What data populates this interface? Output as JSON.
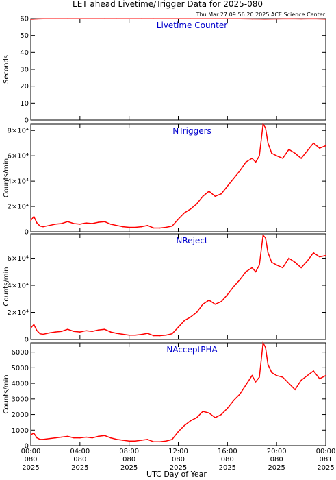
{
  "header": {
    "title": "LET ahead Livetime/Trigger Data for 2025-080",
    "timestamp": "Thu Mar 27 09:56:20 2025 ACE Science Center"
  },
  "x_axis": {
    "label": "UTC Day of Year",
    "ticks": [
      {
        "time": "00:00",
        "doy": "080",
        "year": "2025",
        "hours": 0
      },
      {
        "time": "04:00",
        "doy": "080",
        "year": "2025",
        "hours": 4
      },
      {
        "time": "08:00",
        "doy": "080",
        "year": "2025",
        "hours": 8
      },
      {
        "time": "12:00",
        "doy": "080",
        "year": "2025",
        "hours": 12
      },
      {
        "time": "16:00",
        "doy": "080",
        "year": "2025",
        "hours": 16
      },
      {
        "time": "20:00",
        "doy": "080",
        "year": "2025",
        "hours": 20
      },
      {
        "time": "00:00",
        "doy": "081",
        "year": "2025",
        "hours": 24
      }
    ],
    "range_hours": [
      0,
      24
    ]
  },
  "colors": {
    "data_line": "#ff0000",
    "panel_title": "#0000cc",
    "axes": "#000000",
    "background": "#ffffff"
  },
  "chart_data": [
    {
      "type": "line",
      "title": "Livetime Counter",
      "ylabel": "Seconds",
      "ylim": [
        0,
        60
      ],
      "yticks": [
        {
          "v": 0,
          "t": "0"
        },
        {
          "v": 10,
          "t": "10"
        },
        {
          "v": 20,
          "t": "20"
        },
        {
          "v": 30,
          "t": "30"
        },
        {
          "v": 40,
          "t": "40"
        },
        {
          "v": 50,
          "t": "50"
        },
        {
          "v": 60,
          "t": "60"
        }
      ],
      "x": [
        0,
        0.5,
        1,
        2,
        3,
        4,
        5,
        6,
        7,
        8,
        9,
        10,
        11,
        12,
        13,
        14,
        15,
        16,
        17,
        18,
        19,
        20,
        21,
        22,
        23,
        24
      ],
      "values": [
        59.6,
        59.8,
        59.9,
        59.9,
        59.9,
        59.9,
        59.9,
        59.9,
        59.9,
        59.9,
        59.9,
        59.9,
        59.9,
        59.9,
        59.9,
        59.9,
        59.9,
        59.9,
        59.9,
        59.8,
        59.7,
        59.8,
        59.9,
        59.8,
        59.9,
        59.7
      ]
    },
    {
      "type": "line",
      "title": "NTriggers",
      "ylabel": "Counts/min",
      "ylim": [
        0,
        85000
      ],
      "yticks": [
        {
          "v": 0,
          "t": "0"
        },
        {
          "v": 20000,
          "t": "2×10⁴"
        },
        {
          "v": 40000,
          "t": "4×10⁴"
        },
        {
          "v": 60000,
          "t": "6×10⁴"
        },
        {
          "v": 80000,
          "t": "8×10⁴"
        }
      ],
      "x": [
        0,
        0.25,
        0.5,
        0.75,
        1,
        1.5,
        2,
        2.5,
        3,
        3.5,
        4,
        4.5,
        5,
        5.5,
        6,
        6.5,
        7,
        7.5,
        8,
        8.5,
        9,
        9.5,
        10,
        10.5,
        11,
        11.5,
        12,
        12.5,
        13,
        13.5,
        14,
        14.5,
        15,
        15.5,
        16,
        16.5,
        17,
        17.5,
        18,
        18.3,
        18.6,
        18.9,
        19.1,
        19.3,
        19.6,
        20,
        20.5,
        21,
        21.5,
        22,
        22.5,
        23,
        23.5,
        24
      ],
      "values": [
        9000,
        12000,
        7000,
        4500,
        4000,
        5000,
        6000,
        6500,
        8000,
        6500,
        6000,
        7000,
        6500,
        7500,
        8000,
        6000,
        5000,
        4000,
        3500,
        3500,
        4000,
        5000,
        3000,
        3000,
        3500,
        4500,
        10000,
        15000,
        18000,
        22000,
        28000,
        32000,
        28000,
        30000,
        36000,
        42000,
        48000,
        55000,
        58000,
        55000,
        60000,
        85000,
        82000,
        70000,
        62000,
        60000,
        58000,
        65000,
        62000,
        58000,
        64000,
        70000,
        66000,
        68000
      ]
    },
    {
      "type": "line",
      "title": "NReject",
      "ylabel": "Counts/min",
      "ylim": [
        0,
        78000
      ],
      "yticks": [
        {
          "v": 0,
          "t": "0"
        },
        {
          "v": 20000,
          "t": "2×10⁴"
        },
        {
          "v": 40000,
          "t": "4×10⁴"
        },
        {
          "v": 60000,
          "t": "6×10⁴"
        }
      ],
      "x": [
        0,
        0.25,
        0.5,
        0.75,
        1,
        1.5,
        2,
        2.5,
        3,
        3.5,
        4,
        4.5,
        5,
        5.5,
        6,
        6.5,
        7,
        7.5,
        8,
        8.5,
        9,
        9.5,
        10,
        10.5,
        11,
        11.5,
        12,
        12.5,
        13,
        13.5,
        14,
        14.5,
        15,
        15.5,
        16,
        16.5,
        17,
        17.5,
        18,
        18.3,
        18.6,
        18.9,
        19.1,
        19.3,
        19.6,
        20,
        20.5,
        21,
        21.5,
        22,
        22.5,
        23,
        23.5,
        24
      ],
      "values": [
        8500,
        11000,
        6500,
        4200,
        3800,
        4800,
        5500,
        6000,
        7500,
        6000,
        5500,
        6500,
        6000,
        7000,
        7500,
        5500,
        4500,
        3800,
        3200,
        3200,
        3700,
        4500,
        2800,
        2800,
        3200,
        4200,
        9000,
        14000,
        16500,
        20000,
        26000,
        29000,
        26000,
        28000,
        33000,
        39000,
        44000,
        50000,
        53000,
        50000,
        55000,
        77000,
        75000,
        64000,
        57000,
        55000,
        53000,
        60000,
        57000,
        53000,
        58000,
        64000,
        61000,
        62000
      ]
    },
    {
      "type": "line",
      "title": "NAcceptPHA",
      "ylabel": "Counts/min",
      "ylim": [
        0,
        6600
      ],
      "yticks": [
        {
          "v": 0,
          "t": "0"
        },
        {
          "v": 1000,
          "t": "1000"
        },
        {
          "v": 2000,
          "t": "2000"
        },
        {
          "v": 3000,
          "t": "3000"
        },
        {
          "v": 4000,
          "t": "4000"
        },
        {
          "v": 5000,
          "t": "5000"
        },
        {
          "v": 6000,
          "t": "6000"
        }
      ],
      "x": [
        0,
        0.25,
        0.5,
        0.75,
        1,
        1.5,
        2,
        2.5,
        3,
        3.5,
        4,
        4.5,
        5,
        5.5,
        6,
        6.5,
        7,
        7.5,
        8,
        8.5,
        9,
        9.5,
        10,
        10.5,
        11,
        11.5,
        12,
        12.5,
        13,
        13.5,
        14,
        14.5,
        15,
        15.5,
        16,
        16.5,
        17,
        17.5,
        18,
        18.3,
        18.6,
        18.9,
        19.1,
        19.3,
        19.6,
        20,
        20.5,
        21,
        21.5,
        22,
        22.5,
        23,
        23.5,
        24
      ],
      "values": [
        700,
        800,
        500,
        400,
        400,
        450,
        500,
        550,
        600,
        500,
        500,
        550,
        500,
        600,
        650,
        500,
        400,
        350,
        300,
        300,
        350,
        400,
        250,
        250,
        300,
        400,
        900,
        1300,
        1600,
        1800,
        2200,
        2100,
        1800,
        2000,
        2400,
        2900,
        3300,
        3900,
        4500,
        4100,
        4400,
        6600,
        6300,
        5200,
        4700,
        4500,
        4400,
        4000,
        3600,
        4200,
        4500,
        4800,
        4300,
        4500
      ]
    }
  ]
}
